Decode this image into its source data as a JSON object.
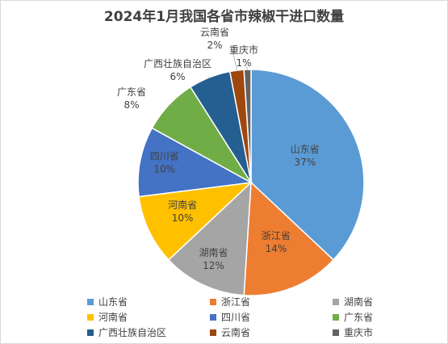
{
  "chart_data": {
    "type": "pie",
    "title": "2024年1月我国各省市辣椒干进口数量",
    "categories": [
      "山东省",
      "浙江省",
      "湖南省",
      "河南省",
      "四川省",
      "广东省",
      "广西壮族自治区",
      "云南省",
      "重庆市"
    ],
    "values": [
      37,
      14,
      12,
      10,
      10,
      8,
      6,
      2,
      1
    ],
    "labels": [
      "37%",
      "14%",
      "12%",
      "10%",
      "10%",
      "8%",
      "6%",
      "2%",
      "1%"
    ],
    "colors": [
      "#5b9bd5",
      "#ed7d31",
      "#a5a5a5",
      "#ffc000",
      "#4472c4",
      "#70ad47",
      "#255e91",
      "#9e480e",
      "#636363"
    ],
    "legend_position": "bottom"
  }
}
